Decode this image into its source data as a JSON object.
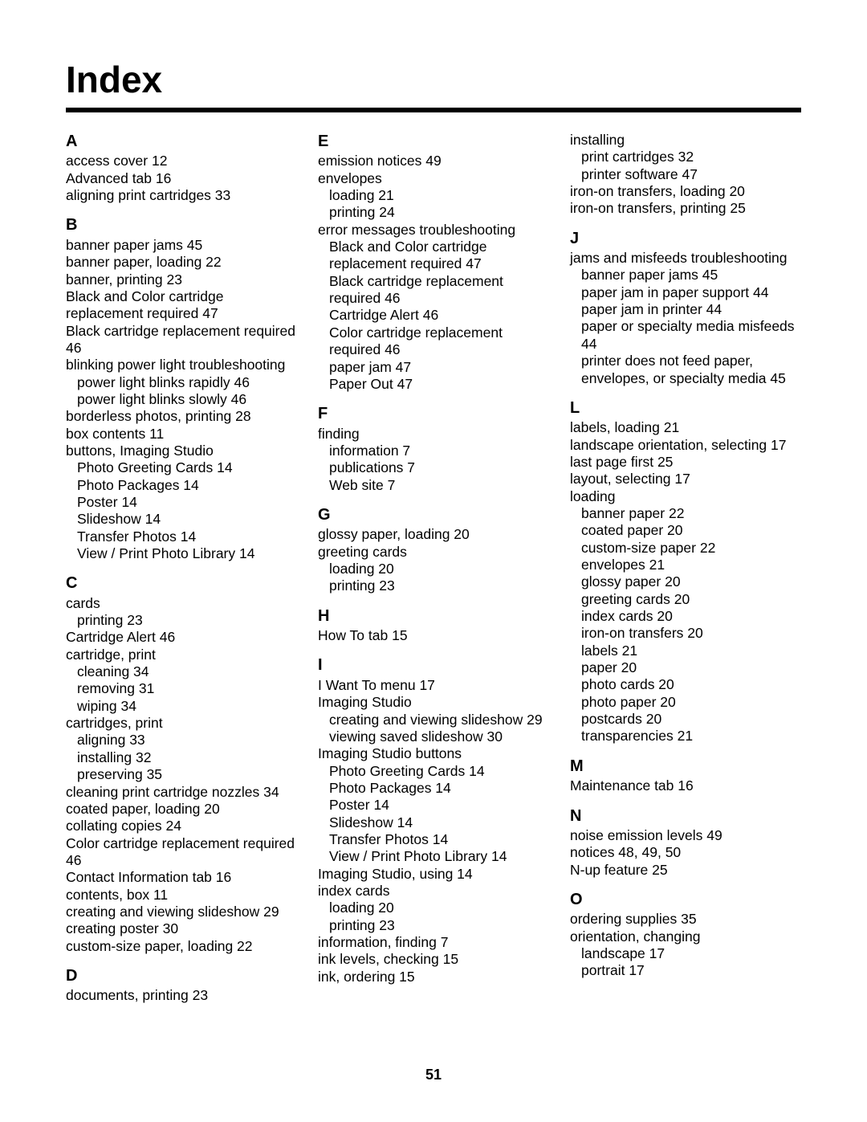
{
  "pageTitle": "Index",
  "pageNumber": "51",
  "col1": {
    "A": {
      "letter": "A",
      "e1": "access cover  12",
      "e2": "Advanced tab  16",
      "e3": "aligning print cartridges  33"
    },
    "B": {
      "letter": "B",
      "e1": "banner paper jams  45",
      "e2": "banner paper, loading  22",
      "e3": "banner, printing  23",
      "e4": "Black and Color cartridge replacement required  47",
      "e5": "Black cartridge replacement required  46",
      "e6": "blinking power light troubleshooting",
      "e6a": "power light blinks rapidly  46",
      "e6b": "power light blinks slowly  46",
      "e7": "borderless photos, printing  28",
      "e8": "box contents  11",
      "e9": "buttons, Imaging Studio",
      "e9a": "Photo Greeting Cards  14",
      "e9b": "Photo Packages  14",
      "e9c": "Poster  14",
      "e9d": "Slideshow  14",
      "e9e": "Transfer Photos  14",
      "e9f": "View / Print Photo Library  14"
    },
    "C": {
      "letter": "C",
      "e1": "cards",
      "e1a": "printing  23",
      "e2": "Cartridge Alert  46",
      "e3": "cartridge, print",
      "e3a": "cleaning  34",
      "e3b": "removing  31",
      "e3c": "wiping  34",
      "e4": "cartridges, print",
      "e4a": "aligning  33",
      "e4b": "installing  32",
      "e4c": "preserving  35",
      "e5": "cleaning print cartridge nozzles  34",
      "e6": "coated paper, loading  20",
      "e7": "collating copies  24",
      "e8": "Color cartridge replacement required  46",
      "e9": "Contact Information tab  16",
      "e10": "contents, box  11",
      "e11": "creating and viewing slideshow  29",
      "e12": "creating poster  30",
      "e13": "custom-size paper, loading  22"
    },
    "D": {
      "letter": "D",
      "e1": "documents, printing  23"
    }
  },
  "col2": {
    "E": {
      "letter": "E",
      "e1": "emission notices  49",
      "e2": "envelopes",
      "e2a": "loading  21",
      "e2b": "printing  24",
      "e3": "error messages troubleshooting",
      "e3a": "Black and Color cartridge replacement required  47",
      "e3b": "Black cartridge replacement required  46",
      "e3c": "Cartridge Alert  46",
      "e3d": "Color cartridge replacement required  46",
      "e3e": "paper jam  47",
      "e3f": "Paper Out  47"
    },
    "F": {
      "letter": "F",
      "e1": "finding",
      "e1a": "information  7",
      "e1b": "publications  7",
      "e1c": "Web site  7"
    },
    "G": {
      "letter": "G",
      "e1": "glossy paper, loading  20",
      "e2": "greeting cards",
      "e2a": "loading  20",
      "e2b": "printing  23"
    },
    "H": {
      "letter": "H",
      "e1": "How To tab  15"
    },
    "I": {
      "letter": "I",
      "e1": "I Want To menu  17",
      "e2": "Imaging Studio",
      "e2a": "creating and viewing slideshow  29",
      "e2b": "viewing saved slideshow  30",
      "e3": "Imaging Studio buttons",
      "e3a": "Photo Greeting Cards  14",
      "e3b": "Photo Packages  14",
      "e3c": "Poster  14",
      "e3d": "Slideshow  14",
      "e3e": "Transfer Photos  14",
      "e3f": "View / Print Photo Library  14",
      "e4": "Imaging Studio, using  14",
      "e5": "index cards",
      "e5a": "loading  20",
      "e5b": "printing  23",
      "e6": "information, finding  7",
      "e7": "ink levels, checking  15",
      "e8": "ink, ordering  15"
    }
  },
  "col3": {
    "Icont": {
      "e1": "installing",
      "e1a": "print cartridges  32",
      "e1b": "printer software  47",
      "e2": "iron-on transfers, loading  20",
      "e3": "iron-on transfers, printing  25"
    },
    "J": {
      "letter": "J",
      "e1": "jams and misfeeds troubleshooting",
      "e1a": "banner paper jams  45",
      "e1b": "paper jam in paper support  44",
      "e1c": "paper jam in printer  44",
      "e1d": "paper or specialty media misfeeds  44",
      "e1e": "printer does not feed paper, envelopes, or specialty media  45"
    },
    "L": {
      "letter": "L",
      "e1": "labels, loading  21",
      "e2": "landscape orientation, selecting  17",
      "e3": "last page first  25",
      "e4": "layout, selecting  17",
      "e5": "loading",
      "e5a": "banner paper  22",
      "e5b": "coated paper  20",
      "e5c": "custom-size paper  22",
      "e5d": "envelopes  21",
      "e5e": "glossy paper  20",
      "e5f": "greeting cards  20",
      "e5g": "index cards  20",
      "e5h": "iron-on transfers  20",
      "e5i": "labels  21",
      "e5j": "paper  20",
      "e5k": "photo cards  20",
      "e5l": "photo paper  20",
      "e5m": "postcards  20",
      "e5n": "transparencies  21"
    },
    "M": {
      "letter": "M",
      "e1": "Maintenance tab  16"
    },
    "N": {
      "letter": "N",
      "e1": "noise emission levels  49",
      "e2": "notices  48, 49, 50",
      "e3": "N-up feature  25"
    },
    "O": {
      "letter": "O",
      "e1": "ordering supplies  35",
      "e2": "orientation, changing",
      "e2a": "landscape  17",
      "e2b": "portrait  17"
    }
  }
}
